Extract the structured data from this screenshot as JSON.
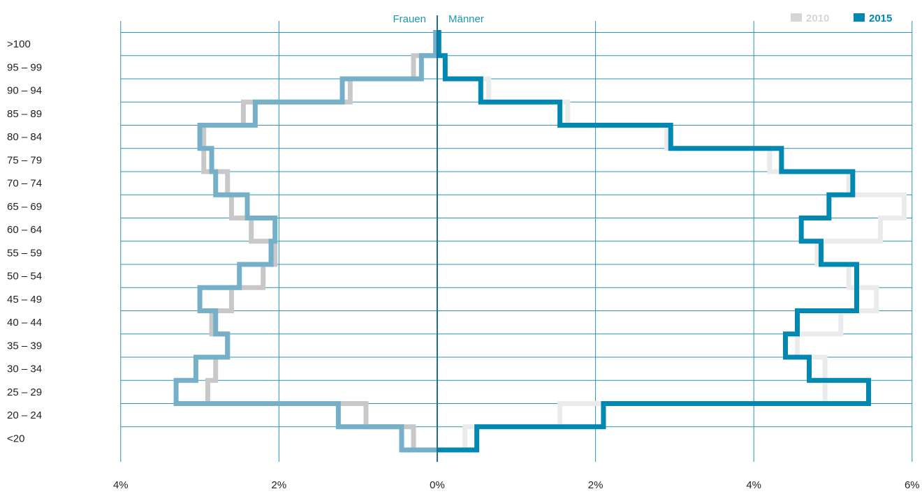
{
  "chart_data": {
    "type": "population-pyramid",
    "title": "",
    "xlabel": "",
    "ylabel": "",
    "side_labels": {
      "left": "Frauen",
      "right": "Männer"
    },
    "x_tick_labels": [
      "4%",
      "2%",
      "0%",
      "2%",
      "4%",
      "6%"
    ],
    "x_ticks": [
      -4,
      -2,
      0,
      2,
      4,
      6
    ],
    "xlim": [
      -4,
      6
    ],
    "age_groups": [
      "<20",
      "20 – 24",
      "25 – 29",
      "30 – 34",
      "35 – 39",
      "40 – 44",
      "45 – 49",
      "50 – 54",
      "55 – 59",
      "60 – 64",
      "65 – 69",
      "70 – 74",
      "75 – 79",
      "80 – 84",
      "85 – 89",
      "90 – 94",
      "95 – 99",
      ">100"
    ],
    "legend": {
      "position": "top-right",
      "entries": [
        "2010",
        "2015"
      ]
    },
    "series": [
      {
        "name": "2010",
        "color_female": "#c8c8c8",
        "color_male": "#ebebeb",
        "female": [
          0.3,
          0.9,
          2.9,
          2.8,
          2.65,
          2.85,
          2.6,
          2.2,
          2.05,
          2.35,
          2.6,
          2.65,
          2.95,
          2.95,
          2.45,
          1.1,
          0.3,
          0.02
        ],
        "male": [
          0.35,
          1.55,
          4.9,
          4.9,
          4.55,
          5.1,
          5.55,
          5.2,
          4.8,
          5.6,
          5.9,
          5.2,
          4.2,
          2.9,
          1.65,
          0.65,
          0.1,
          0.02
        ]
      },
      {
        "name": "2015",
        "color_female": "#76afc8",
        "color_male": "#0088b3",
        "female": [
          0.45,
          1.25,
          3.3,
          3.05,
          2.65,
          2.8,
          3.0,
          2.5,
          2.1,
          2.05,
          2.4,
          2.8,
          2.85,
          3.0,
          2.3,
          1.2,
          0.2,
          0.02
        ],
        "male": [
          0.5,
          2.1,
          5.45,
          4.7,
          4.4,
          4.55,
          5.3,
          5.3,
          4.85,
          4.6,
          4.95,
          5.25,
          4.35,
          2.95,
          1.55,
          0.55,
          0.1,
          0.02
        ]
      }
    ]
  }
}
